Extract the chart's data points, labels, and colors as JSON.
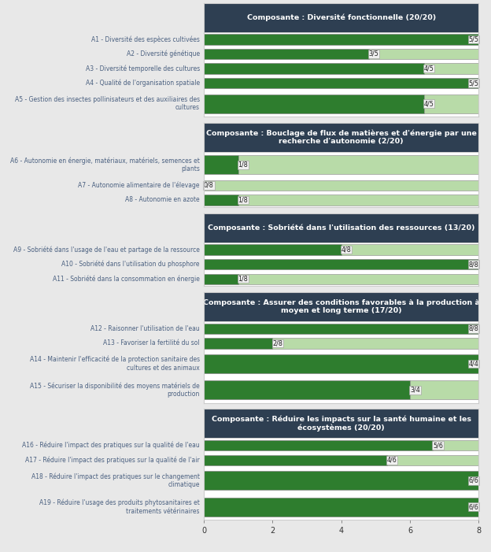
{
  "sections": [
    {
      "title": "Composante : Diversité fonctionnelle (20/20)",
      "indicators": [
        {
          "label": "A1 - Diversité des espèces cultivées",
          "value": 5,
          "max": 5
        },
        {
          "label": "A2 - Diversité génétique",
          "value": 3,
          "max": 5
        },
        {
          "label": "A3 - Diversité temporelle des cultures",
          "value": 4,
          "max": 5
        },
        {
          "label": "A4 - Qualité de l'organisation spatiale",
          "value": 5,
          "max": 5
        },
        {
          "label": "A5 - Gestion des insectes pollinisateurs et des auxiliaires des\ncultures",
          "value": 4,
          "max": 5
        }
      ]
    },
    {
      "title": "Composante : Bouclage de flux de matières et d'énergie par une\nrecherche d'autonomie (2/20)",
      "indicators": [
        {
          "label": "A6 - Autonomie en énergie, matériaux, matériels, semences et\nplants",
          "value": 1,
          "max": 8
        },
        {
          "label": "A7 - Autonomie alimentaire de l'élevage",
          "value": 0,
          "max": 8
        },
        {
          "label": "A8 - Autonomie en azote",
          "value": 1,
          "max": 8
        }
      ]
    },
    {
      "title": "Composante : Sobriété dans l'utilisation des ressources (13/20)",
      "indicators": [
        {
          "label": "A9 - Sobriété dans l'usage de l'eau et partage de la ressource",
          "value": 4,
          "max": 8
        },
        {
          "label": "A10 - Sobriété dans l'utilisation du phosphore",
          "value": 8,
          "max": 8
        },
        {
          "label": "A11 - Sobriété dans la consommation en énergie",
          "value": 1,
          "max": 8
        }
      ]
    },
    {
      "title": "Composante : Assurer des conditions favorables à la production à\nmoyen et long terme (17/20)",
      "indicators": [
        {
          "label": "A12 - Raisonner l'utilisation de l'eau",
          "value": 8,
          "max": 8
        },
        {
          "label": "A13 - Favoriser la fertilité du sol",
          "value": 2,
          "max": 8
        },
        {
          "label": "A14 - Maintenir l'efficacité de la protection sanitaire des\ncultures et des animaux",
          "value": 4,
          "max": 4
        },
        {
          "label": "A15 - Sécuriser la disponibilité des moyens matériels de\nproduction",
          "value": 3,
          "max": 4
        }
      ]
    },
    {
      "title": "Composante : Réduire les impacts sur la santé humaine et les\nécosystèmes (20/20)",
      "indicators": [
        {
          "label": "A16 - Réduire l'impact des pratiques sur la qualité de l'eau",
          "value": 5,
          "max": 6
        },
        {
          "label": "A17 - Réduire l'impact des pratiques sur la qualité de l'air",
          "value": 4,
          "max": 6
        },
        {
          "label": "A18 - Réduire l'impact des pratiques sur le changement\nclimatique",
          "value": 6,
          "max": 6
        },
        {
          "label": "A19 - Réduire l'usage des produits phytosanitaires et\ntraitements vétérinaires",
          "value": 6,
          "max": 6
        }
      ]
    }
  ],
  "xlim": 8,
  "header_bg": "#2e3f52",
  "header_text_color": "#ffffff",
  "bar_green_dark": "#2e7d2e",
  "bar_green_light": "#b8dba8",
  "bar_border_color": "#999999",
  "label_color": "#4a6080",
  "annotation_bg": "#f0f0f0",
  "annotation_border": "#999999",
  "section_bg": "#ffffff",
  "section_border": "#cccccc",
  "fig_bg": "#e8e8e8",
  "gap_color": "#e8e8e8"
}
